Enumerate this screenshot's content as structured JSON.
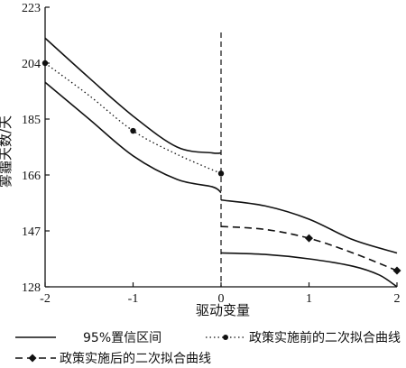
{
  "chart_data": {
    "type": "line",
    "xlabel": "驱动变量",
    "ylabel": "雾霾天数/天",
    "xlim": [
      -2,
      2
    ],
    "ylim": [
      128,
      223
    ],
    "xticks": [
      -2,
      -1,
      0,
      1,
      2
    ],
    "yticks": [
      128,
      147,
      166,
      185,
      204,
      223
    ],
    "cutoff_x": 0,
    "legend": [
      {
        "key": "ci",
        "label": "95%置信区间"
      },
      {
        "key": "before",
        "label": "政策实施前的二次拟合曲线"
      },
      {
        "key": "after",
        "label": "政策实施后的二次拟合曲线"
      }
    ],
    "series": [
      {
        "name": "95%置信区间",
        "key": "ci_upper_left",
        "style": "solid",
        "x": [
          -2,
          -1.5,
          -1,
          -0.5,
          -0.1,
          0
        ],
        "y": [
          212.5,
          199,
          186,
          175.5,
          173.5,
          173.5
        ]
      },
      {
        "name": "95%置信区间",
        "key": "ci_lower_left",
        "style": "solid",
        "x": [
          -2,
          -1.5,
          -1,
          -0.5,
          -0.1,
          0
        ],
        "y": [
          197.5,
          185,
          172.5,
          164.5,
          162,
          160
        ]
      },
      {
        "name": "政策实施前的二次拟合曲线",
        "key": "before",
        "style": "dotted",
        "x": [
          -2,
          -1.5,
          -1,
          -0.5,
          0
        ],
        "y": [
          204,
          193,
          181,
          173,
          166.5
        ],
        "markers_x": [
          -2,
          -1,
          0
        ],
        "markers_y": [
          204,
          181,
          166.5
        ]
      },
      {
        "name": "95%置信区间",
        "key": "ci_upper_right",
        "style": "solid",
        "x": [
          0,
          0.5,
          1,
          1.5,
          2
        ],
        "y": [
          157.5,
          155.5,
          151,
          144,
          139.5
        ]
      },
      {
        "name": "95%置信区间",
        "key": "ci_lower_right",
        "style": "solid",
        "x": [
          0,
          0.5,
          1,
          1.5,
          1.8,
          2
        ],
        "y": [
          139.5,
          139,
          137.5,
          135,
          132,
          128
        ]
      },
      {
        "name": "政策实施后的二次拟合曲线",
        "key": "after",
        "style": "dashed",
        "x": [
          0,
          0.5,
          1,
          1.5,
          2
        ],
        "y": [
          148.5,
          147.5,
          144.5,
          139.5,
          133.5
        ],
        "markers_x": [
          1,
          2
        ],
        "markers_y": [
          144.5,
          133.5
        ]
      }
    ]
  }
}
